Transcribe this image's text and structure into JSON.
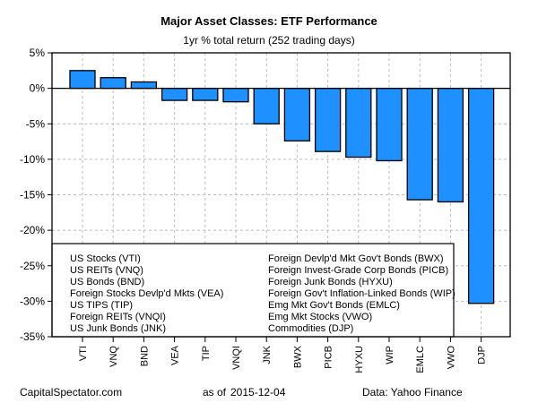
{
  "chart_data": {
    "type": "bar",
    "title": "Major Asset Classes: ETF Performance",
    "subtitle": "1yr % total return (252 trading days)",
    "xlabel": "",
    "ylabel": "",
    "categories": [
      "VTI",
      "VNQ",
      "BND",
      "VEA",
      "TIP",
      "VNQI",
      "JNK",
      "BWX",
      "PICB",
      "HYXU",
      "WIP",
      "EMLC",
      "VWO",
      "DJP"
    ],
    "values": [
      2.5,
      1.5,
      0.9,
      -1.7,
      -1.7,
      -1.9,
      -5.0,
      -7.4,
      -8.9,
      -9.7,
      -10.2,
      -15.7,
      -16.0,
      -30.3
    ],
    "ylim": [
      -35,
      5
    ],
    "yticks": [
      5,
      0,
      -5,
      -10,
      -15,
      -20,
      -25,
      -30,
      -35
    ],
    "ytick_labels": [
      "5%",
      "0%",
      "-5%",
      "-10%",
      "-15%",
      "-20%",
      "-25%",
      "-30%",
      "-35%"
    ],
    "bar_color": "#1E90FF",
    "grid": true,
    "legend_placement": "bottom-left",
    "legend": {
      "col1": [
        "US Stocks (VTI)",
        "US REITs (VNQ)",
        "US Bonds (BND)",
        "Foreign Stocks Devlp'd Mkts (VEA)",
        "US TIPS (TIP)",
        "Foreign REITs (VNQI)",
        "US Junk Bonds (JNK)"
      ],
      "col2": [
        "Foreign Devlp'd Mkt Gov't Bonds (BWX)",
        "Foreign Invest-Grade Corp Bonds (PICB)",
        "Foreign Junk Bonds (HYXU)",
        "Foreign Gov't Inflation-Linked Bonds (WIP)",
        "Emg Mkt Gov't Bonds (EMLC)",
        "Emg Mkt Stocks (VWO)",
        "Commodities (DJP)"
      ]
    }
  },
  "footer": {
    "source_site": "CapitalSpectator.com",
    "as_of_label": "as of",
    "as_of_date": "2015-12-04",
    "data_source": "Data: Yahoo Finance"
  }
}
